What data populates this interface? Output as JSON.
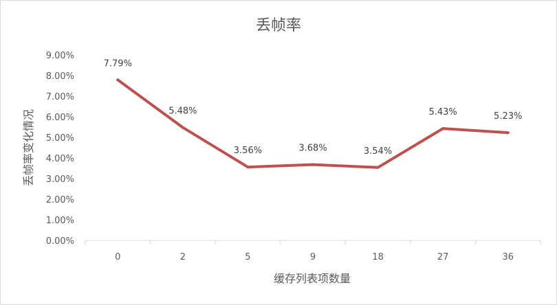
{
  "chart_data": {
    "type": "line",
    "title": "丢帧率",
    "xlabel": "缓存列表项数量",
    "ylabel": "丢帧率变化情况",
    "categories": [
      "0",
      "2",
      "5",
      "9",
      "18",
      "27",
      "36"
    ],
    "series": [
      {
        "values": [
          7.79,
          5.48,
          3.56,
          3.68,
          3.54,
          5.43,
          5.23
        ],
        "color": "#c0504d"
      }
    ],
    "data_labels": [
      "7.79%",
      "5.48%",
      "3.56%",
      "3.68%",
      "3.54%",
      "5.43%",
      "5.23%"
    ],
    "y_ticks": [
      "0.00%",
      "1.00%",
      "2.00%",
      "3.00%",
      "4.00%",
      "5.00%",
      "6.00%",
      "7.00%",
      "8.00%",
      "9.00%"
    ],
    "ylim": [
      0,
      9
    ],
    "grid": false,
    "axis_color": "#d9d9d9"
  }
}
